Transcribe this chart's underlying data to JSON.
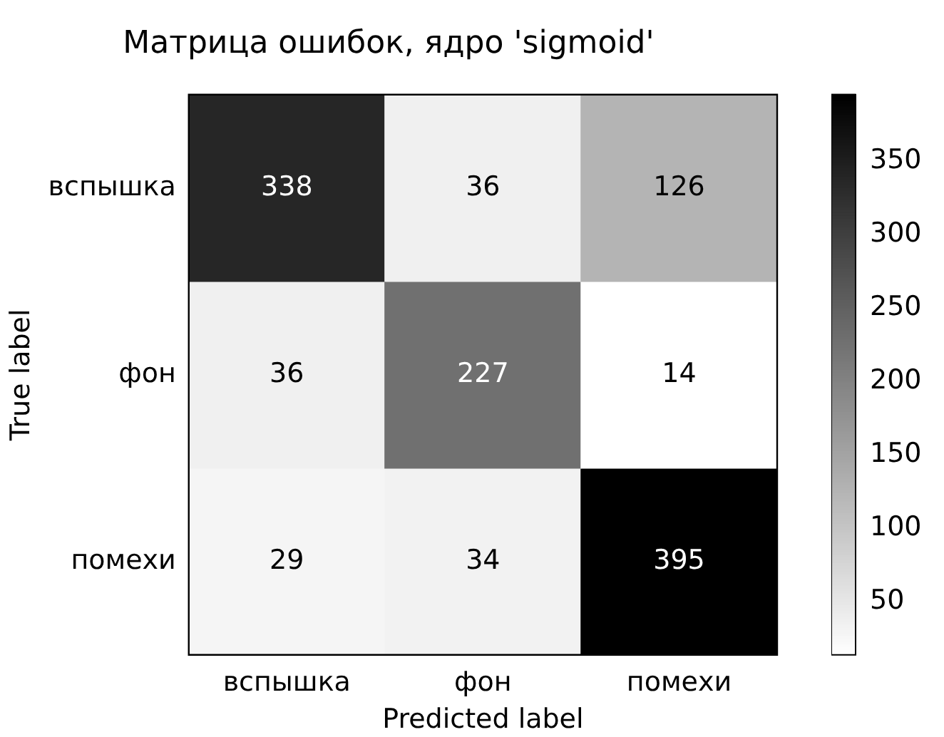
{
  "chart_data": {
    "type": "heatmap",
    "title": "Матрица ошибок, ядро 'sigmoid'",
    "xlabel": "Predicted label",
    "ylabel": "True label",
    "categories": [
      "вспышка",
      "фон",
      "помехи"
    ],
    "y_categories": [
      "вспышка",
      "фон",
      "помехи"
    ],
    "cells": [
      [
        338,
        36,
        126
      ],
      [
        36,
        227,
        14
      ],
      [
        29,
        34,
        395
      ]
    ],
    "clim": [
      14,
      395
    ],
    "cticks": [
      50,
      100,
      150,
      200,
      250,
      300,
      350
    ],
    "data_labels": true,
    "grid": false,
    "legend": false
  }
}
